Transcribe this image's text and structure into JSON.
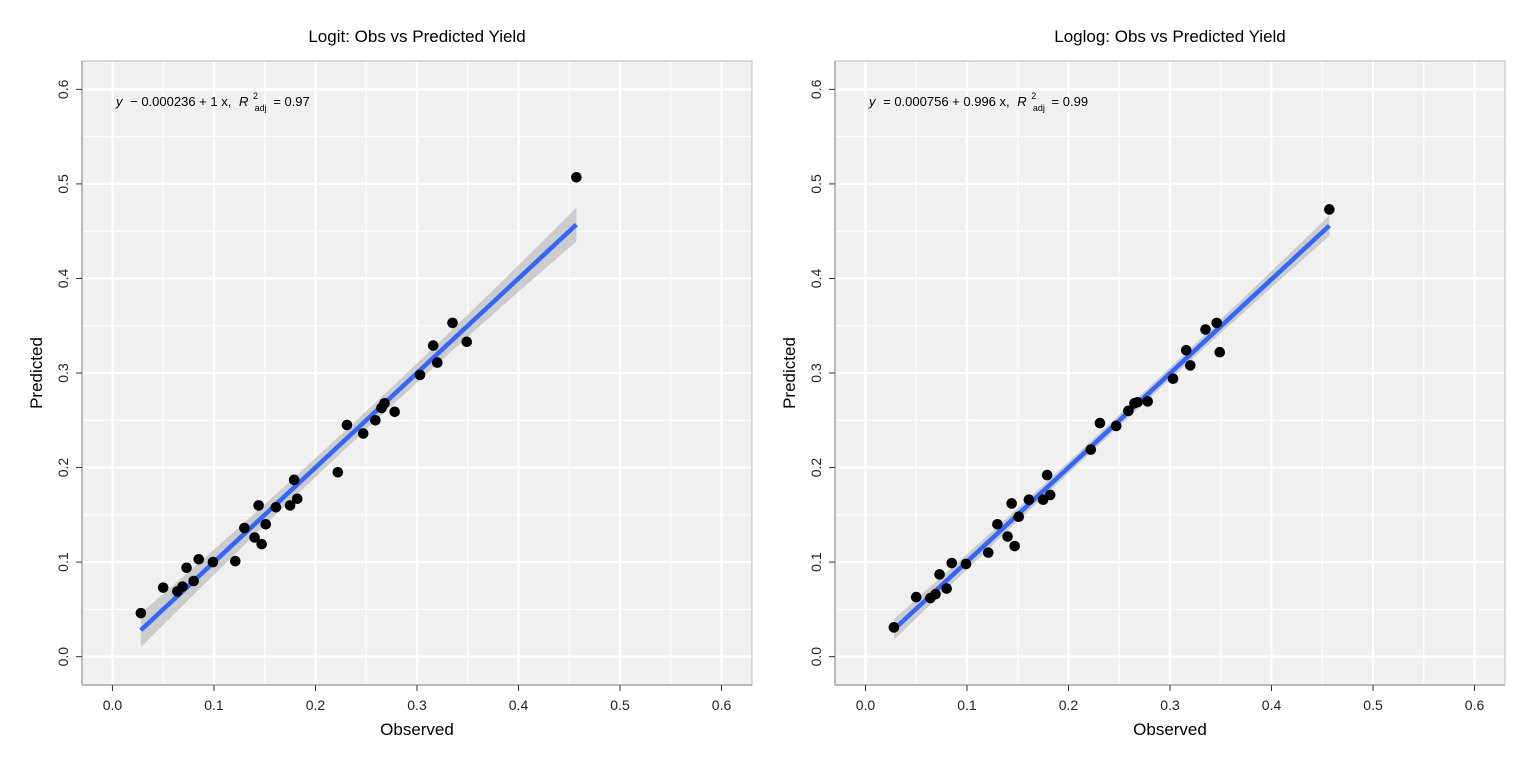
{
  "chart_data": [
    {
      "type": "scatter",
      "title": "Logit:  Obs vs Predicted Yield",
      "xlabel": "Observed",
      "ylabel": "Predicted",
      "xlim": [
        -0.03,
        0.63
      ],
      "ylim": [
        -0.03,
        0.63
      ],
      "xticks": [
        0.0,
        0.1,
        0.2,
        0.3,
        0.4,
        0.5,
        0.6
      ],
      "yticks": [
        0.0,
        0.1,
        0.2,
        0.3,
        0.4,
        0.5,
        0.6
      ],
      "grid": true,
      "equation": {
        "lhs": "y",
        "rhs": "− 0.000236 + 1 x,",
        "r2_symbol": "R",
        "r2_sup": "2",
        "r2_sub": "adj",
        "r2_value": "= 0.97"
      },
      "fit_line": {
        "x": [
          0.028,
          0.457
        ],
        "y": [
          0.028,
          0.457
        ],
        "color": "#3366FF"
      },
      "points": [
        {
          "x": 0.028,
          "y": 0.046
        },
        {
          "x": 0.05,
          "y": 0.073
        },
        {
          "x": 0.064,
          "y": 0.069
        },
        {
          "x": 0.069,
          "y": 0.074
        },
        {
          "x": 0.073,
          "y": 0.094
        },
        {
          "x": 0.08,
          "y": 0.08
        },
        {
          "x": 0.085,
          "y": 0.103
        },
        {
          "x": 0.099,
          "y": 0.1
        },
        {
          "x": 0.121,
          "y": 0.101
        },
        {
          "x": 0.13,
          "y": 0.136
        },
        {
          "x": 0.14,
          "y": 0.126
        },
        {
          "x": 0.144,
          "y": 0.16
        },
        {
          "x": 0.147,
          "y": 0.119
        },
        {
          "x": 0.151,
          "y": 0.14
        },
        {
          "x": 0.161,
          "y": 0.158
        },
        {
          "x": 0.175,
          "y": 0.16
        },
        {
          "x": 0.179,
          "y": 0.187
        },
        {
          "x": 0.182,
          "y": 0.167
        },
        {
          "x": 0.222,
          "y": 0.195
        },
        {
          "x": 0.231,
          "y": 0.245
        },
        {
          "x": 0.247,
          "y": 0.236
        },
        {
          "x": 0.259,
          "y": 0.25
        },
        {
          "x": 0.265,
          "y": 0.263
        },
        {
          "x": 0.268,
          "y": 0.268
        },
        {
          "x": 0.278,
          "y": 0.259
        },
        {
          "x": 0.303,
          "y": 0.298
        },
        {
          "x": 0.316,
          "y": 0.329
        },
        {
          "x": 0.32,
          "y": 0.311
        },
        {
          "x": 0.335,
          "y": 0.353
        },
        {
          "x": 0.349,
          "y": 0.333
        },
        {
          "x": 0.457,
          "y": 0.507
        }
      ]
    },
    {
      "type": "scatter",
      "title": "Loglog:  Obs vs Predicted Yield",
      "xlabel": "Observed",
      "ylabel": "Predicted",
      "xlim": [
        -0.03,
        0.63
      ],
      "ylim": [
        -0.03,
        0.63
      ],
      "xticks": [
        0.0,
        0.1,
        0.2,
        0.3,
        0.4,
        0.5,
        0.6
      ],
      "yticks": [
        0.0,
        0.1,
        0.2,
        0.3,
        0.4,
        0.5,
        0.6
      ],
      "grid": true,
      "equation": {
        "lhs": "y",
        "rhs": "= 0.000756 + 0.996 x,",
        "r2_symbol": "R",
        "r2_sup": "2",
        "r2_sub": "adj",
        "r2_value": "= 0.99"
      },
      "fit_line": {
        "x": [
          0.028,
          0.457
        ],
        "y": [
          0.0287,
          0.4559
        ],
        "color": "#3366FF"
      },
      "points": [
        {
          "x": 0.028,
          "y": 0.031
        },
        {
          "x": 0.05,
          "y": 0.063
        },
        {
          "x": 0.064,
          "y": 0.062
        },
        {
          "x": 0.069,
          "y": 0.066
        },
        {
          "x": 0.073,
          "y": 0.087
        },
        {
          "x": 0.08,
          "y": 0.072
        },
        {
          "x": 0.085,
          "y": 0.099
        },
        {
          "x": 0.099,
          "y": 0.098
        },
        {
          "x": 0.121,
          "y": 0.11
        },
        {
          "x": 0.13,
          "y": 0.14
        },
        {
          "x": 0.14,
          "y": 0.127
        },
        {
          "x": 0.144,
          "y": 0.162
        },
        {
          "x": 0.147,
          "y": 0.117
        },
        {
          "x": 0.151,
          "y": 0.148
        },
        {
          "x": 0.161,
          "y": 0.166
        },
        {
          "x": 0.175,
          "y": 0.166
        },
        {
          "x": 0.179,
          "y": 0.192
        },
        {
          "x": 0.182,
          "y": 0.171
        },
        {
          "x": 0.222,
          "y": 0.219
        },
        {
          "x": 0.231,
          "y": 0.247
        },
        {
          "x": 0.247,
          "y": 0.244
        },
        {
          "x": 0.259,
          "y": 0.26
        },
        {
          "x": 0.265,
          "y": 0.268
        },
        {
          "x": 0.268,
          "y": 0.269
        },
        {
          "x": 0.278,
          "y": 0.27
        },
        {
          "x": 0.303,
          "y": 0.294
        },
        {
          "x": 0.316,
          "y": 0.324
        },
        {
          "x": 0.32,
          "y": 0.308
        },
        {
          "x": 0.335,
          "y": 0.346
        },
        {
          "x": 0.346,
          "y": 0.353
        },
        {
          "x": 0.349,
          "y": 0.322
        },
        {
          "x": 0.457,
          "y": 0.473
        }
      ]
    }
  ]
}
